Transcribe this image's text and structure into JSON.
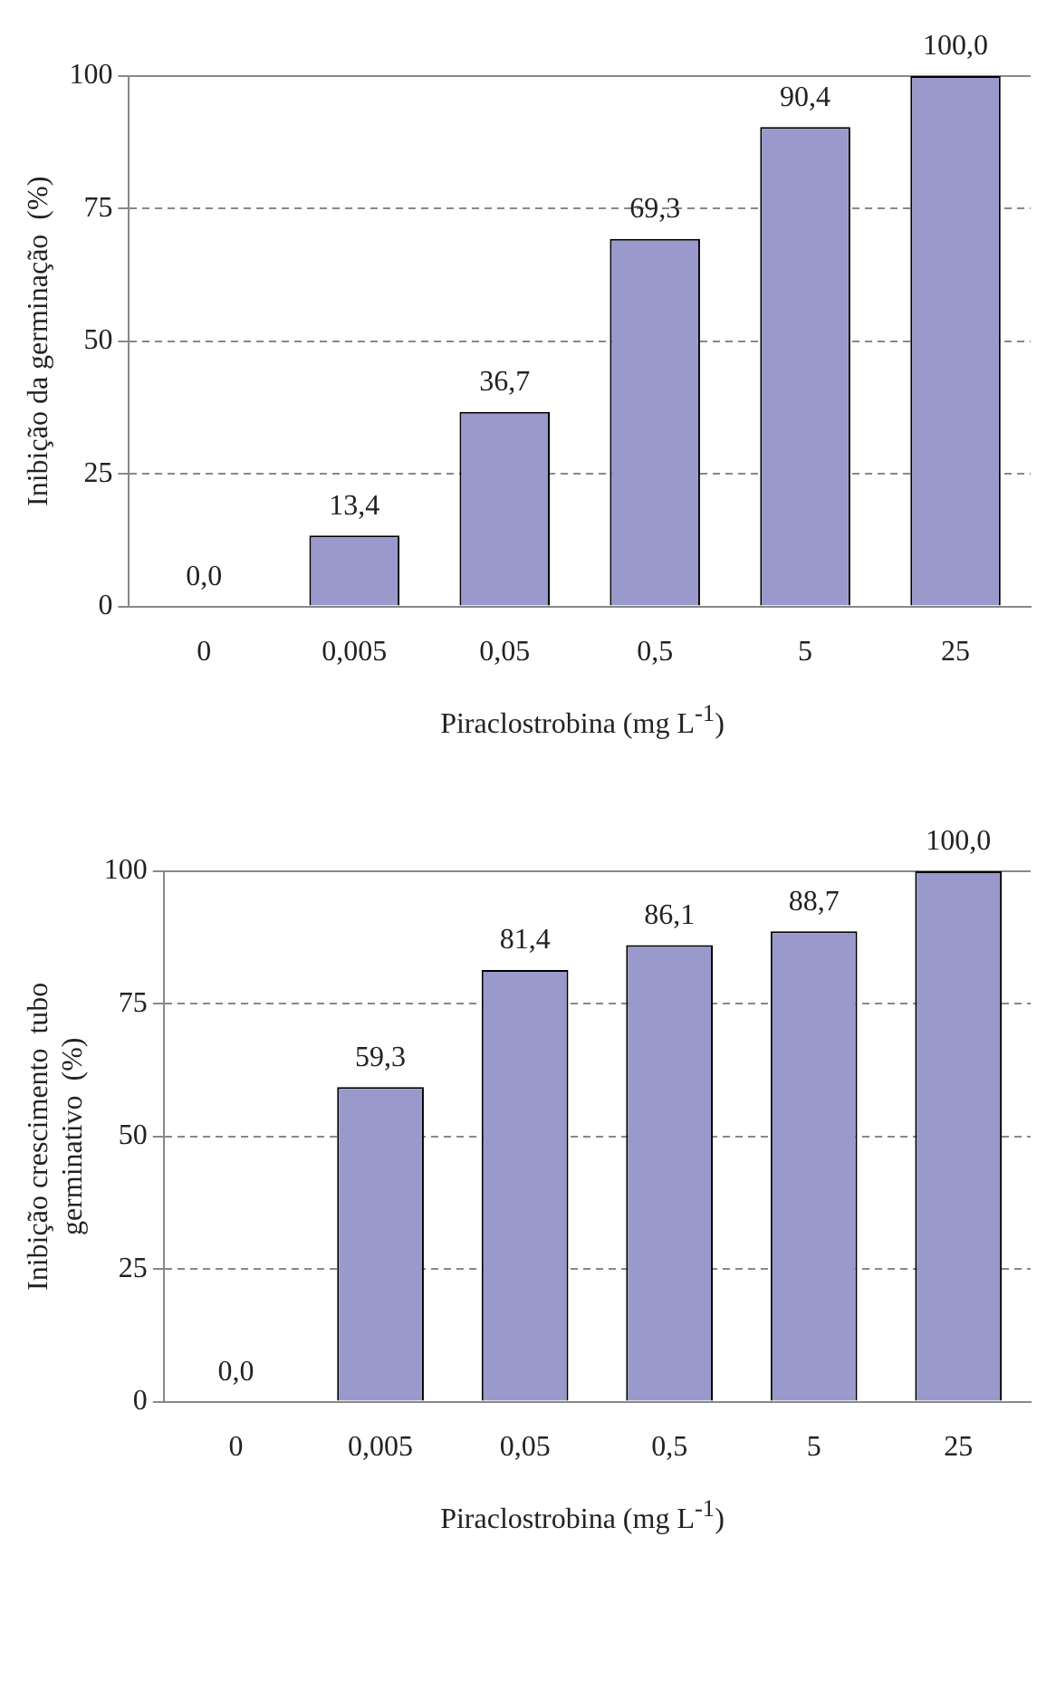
{
  "chart_data": [
    {
      "type": "bar",
      "xlabel": "Piraclostrobina (mg L$^{-1}$)",
      "ylabel": "Inibição da germinação  (%)",
      "categories": [
        "0",
        "0,005",
        "0,05",
        "0,5",
        "5",
        "25"
      ],
      "values": [
        0.0,
        13.4,
        36.7,
        69.3,
        90.4,
        100.0
      ],
      "value_labels": [
        "0,0",
        "13,4",
        "36,7",
        "69,3",
        "90,4",
        "100,0"
      ],
      "color": "#9999cc",
      "ylim": [
        0,
        100
      ],
      "yticks": [
        0,
        25,
        50,
        75,
        100
      ],
      "grid": "y"
    },
    {
      "type": "bar",
      "xlabel": "Piraclostrobina (mg L$^{-1}$)",
      "ylabel": "Inibição crescimento  tubo\ngerminativo  (%)",
      "categories": [
        "0",
        "0,005",
        "0,05",
        "0,5",
        "5",
        "25"
      ],
      "values": [
        0.0,
        59.3,
        81.4,
        86.1,
        88.7,
        100.0
      ],
      "value_labels": [
        "0,0",
        "59,3",
        "81,4",
        "86,1",
        "88,7",
        "100,0"
      ],
      "color": "#9999cc",
      "ylim": [
        0,
        100
      ],
      "yticks": [
        0,
        25,
        50,
        75,
        100
      ],
      "grid": "y"
    }
  ]
}
